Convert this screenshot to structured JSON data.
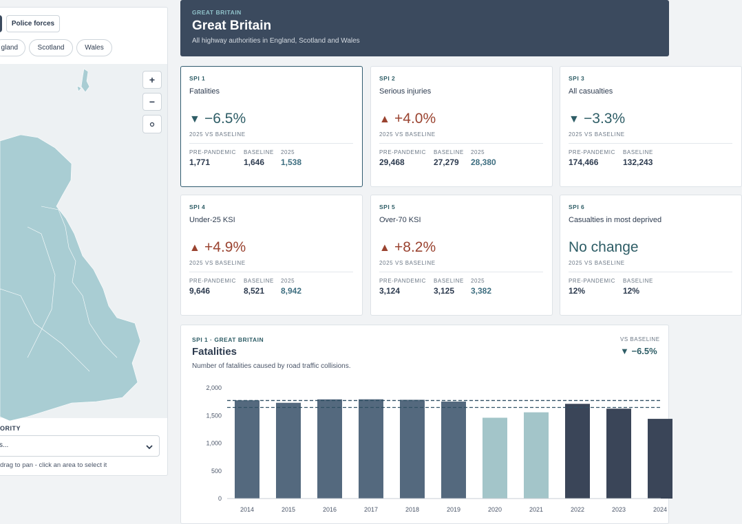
{
  "left_panel": {
    "buttons": [
      "Police forces"
    ],
    "tabs": [
      "gland",
      "Scotland",
      "Wales"
    ],
    "zoom": [
      "+",
      "−"
    ],
    "authority_label": "ORITY",
    "select": "s...",
    "hint": "drag to pan - click an area to select it"
  },
  "header": {
    "eyebrow": "GREAT BRITAIN",
    "title": "Great Britain",
    "subtitle": "All highway authorities in England, Scotland and Wales"
  },
  "cards": [
    {
      "eyebrow": "SPI 1",
      "title": "Fatalities",
      "arrow": "▼",
      "change": "−6.5%",
      "comparison": "2025 VS BASELINE",
      "stats": [
        {
          "label": "PRE-PANDEMIC",
          "value": "1,771"
        },
        {
          "label": "BASELINE",
          "value": "1,646"
        },
        {
          "label": "2025",
          "value": "1,538"
        }
      ]
    },
    {
      "eyebrow": "SPI 2",
      "title": "Serious injuries",
      "arrow": "▲",
      "change": "+4.0%",
      "comparison": "2025 VS BASELINE",
      "stats": [
        {
          "label": "PRE-PANDEMIC",
          "value": "29,468"
        },
        {
          "label": "BASELINE",
          "value": "27,279"
        },
        {
          "label": "2025",
          "value": "28,380"
        }
      ]
    },
    {
      "eyebrow": "SPI 3",
      "title": "All casualties",
      "arrow": "▼",
      "change": "−3.3%",
      "comparison": "2025 VS BASELINE",
      "stats": [
        {
          "label": "PRE-PANDEMIC",
          "value": "174,466"
        },
        {
          "label": "BASELINE",
          "value": "132,243"
        }
      ]
    },
    {
      "eyebrow": "SPI 4",
      "title": "Under-25 KSI",
      "arrow": "▲",
      "change": "+4.9%",
      "comparison": "2025 VS BASELINE",
      "stats": [
        {
          "label": "PRE-PANDEMIC",
          "value": "9,646"
        },
        {
          "label": "BASELINE",
          "value": "8,521"
        },
        {
          "label": "2025",
          "value": "8,942"
        }
      ]
    },
    {
      "eyebrow": "SPI 5",
      "title": "Over-70 KSI",
      "arrow": "▲",
      "change": "+8.2%",
      "comparison": "2025 VS BASELINE",
      "stats": [
        {
          "label": "PRE-PANDEMIC",
          "value": "3,124"
        },
        {
          "label": "BASELINE",
          "value": "3,125"
        },
        {
          "label": "2025",
          "value": "3,382"
        }
      ]
    },
    {
      "eyebrow": "SPI 6",
      "title": "Casualties in most deprived",
      "change": "No change",
      "comparison": "2025 VS BASELINE",
      "stats": [
        {
          "label": "PRE-PANDEMIC",
          "value": "12%"
        },
        {
          "label": "BASELINE",
          "value": "12%"
        }
      ]
    }
  ],
  "chart_data": {
    "type": "bar",
    "eyebrow": "SPI 1 · GREAT BRITAIN",
    "title": "Fatalities",
    "subtitle": "Number of fatalities caused by road traffic collisions.",
    "badge_label": "VS BASELINE",
    "badge_value": "▼ −6.5%",
    "categories": [
      "2014",
      "2015",
      "2016",
      "2017",
      "2018",
      "2019",
      "2020",
      "2021",
      "2022",
      "2023",
      "2024"
    ],
    "values": [
      1775,
      1730,
      1792,
      1793,
      1784,
      1752,
      1460,
      1558,
      1711,
      1624,
      1440
    ],
    "colors": [
      "#54697e",
      "#54697e",
      "#54697e",
      "#54697e",
      "#54697e",
      "#54697e",
      "#a3c5c9",
      "#a3c5c9",
      "#3a4558",
      "#3a4558",
      "#3a4558"
    ],
    "reference_lines": [
      1771,
      1646
    ],
    "ylim": [
      0,
      2000
    ],
    "yticks": [
      0,
      500,
      {
        "value": 1000,
        "label": "1,000"
      },
      {
        "value": 1500,
        "label": "1,500"
      },
      {
        "value": 2000,
        "label": "2,000"
      }
    ]
  }
}
